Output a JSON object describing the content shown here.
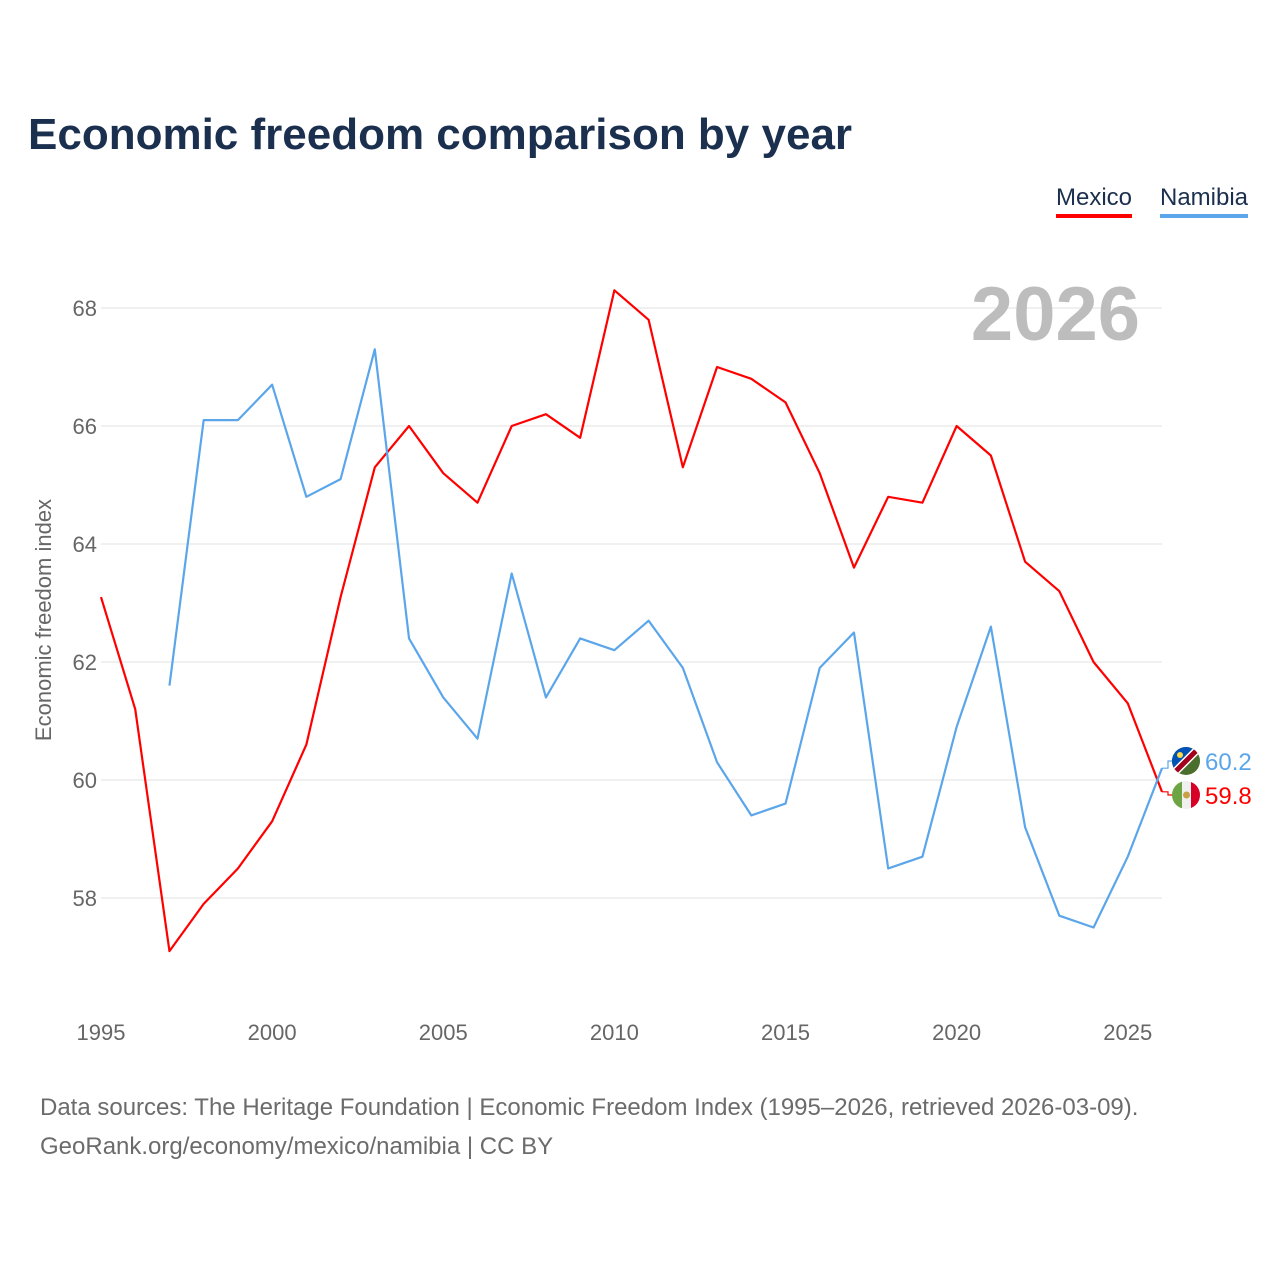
{
  "chart_data": {
    "type": "line",
    "title": "Economic freedom comparison by year",
    "xlabel": "",
    "ylabel": "Economic freedom index",
    "xlim": [
      1995,
      2026
    ],
    "ylim": [
      56.5,
      69
    ],
    "yticks": [
      58,
      60,
      62,
      64,
      66,
      68
    ],
    "xticks": [
      1995,
      2000,
      2005,
      2010,
      2015,
      2020,
      2025
    ],
    "grid": true,
    "legend_placement": "top-right",
    "year_watermark": "2026",
    "series": [
      {
        "name": "Mexico",
        "color": "#ff0000",
        "end_label": "59.8",
        "flag": "mexico-flag",
        "x": [
          1995,
          1996,
          1997,
          1998,
          1999,
          2000,
          2001,
          2002,
          2003,
          2004,
          2005,
          2006,
          2007,
          2008,
          2009,
          2010,
          2011,
          2012,
          2013,
          2014,
          2015,
          2016,
          2017,
          2018,
          2019,
          2020,
          2021,
          2022,
          2023,
          2024,
          2025,
          2026
        ],
        "values": [
          63.1,
          61.2,
          57.1,
          57.9,
          58.5,
          59.3,
          60.6,
          63.1,
          65.3,
          66.0,
          65.2,
          64.7,
          66.0,
          66.2,
          65.8,
          68.3,
          67.8,
          65.3,
          67.0,
          66.8,
          66.4,
          65.2,
          63.6,
          64.8,
          64.7,
          66.0,
          65.5,
          63.7,
          63.2,
          62.0,
          61.3,
          59.8
        ]
      },
      {
        "name": "Namibia",
        "color": "#5ba6ea",
        "end_label": "60.2",
        "flag": "namibia-flag",
        "x": [
          1997,
          1998,
          1999,
          2000,
          2001,
          2002,
          2003,
          2004,
          2005,
          2006,
          2007,
          2008,
          2009,
          2010,
          2011,
          2012,
          2013,
          2014,
          2015,
          2016,
          2017,
          2018,
          2019,
          2020,
          2021,
          2022,
          2023,
          2024,
          2025,
          2026
        ],
        "values": [
          61.6,
          66.1,
          66.1,
          66.7,
          64.8,
          65.1,
          67.3,
          62.4,
          61.4,
          60.7,
          63.5,
          61.4,
          62.4,
          62.2,
          62.7,
          61.9,
          60.3,
          59.4,
          59.6,
          61.9,
          62.5,
          58.5,
          58.7,
          60.9,
          62.6,
          59.2,
          57.7,
          57.5,
          58.7,
          60.2
        ]
      }
    ]
  },
  "source_line1": "Data sources: The Heritage Foundation | Economic Freedom Index (1995–2026, retrieved 2026-03-09).",
  "source_line2": "GeoRank.org/economy/mexico/namibia | CC BY"
}
